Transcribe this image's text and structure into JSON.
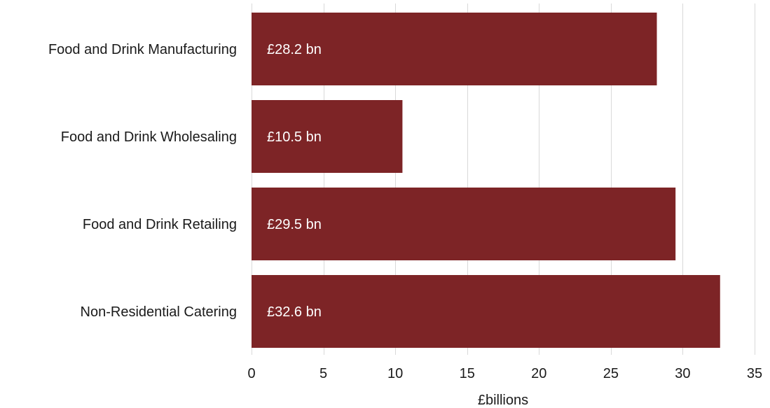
{
  "chart_data": {
    "type": "bar",
    "orientation": "horizontal",
    "categories": [
      "Food and Drink Manufacturing",
      "Food and Drink Wholesaling",
      "Food and Drink Retailing",
      "Non-Residential Catering"
    ],
    "values": [
      28.2,
      10.5,
      29.5,
      32.6
    ],
    "data_labels": [
      "£28.2 bn",
      "£10.5 bn",
      "£29.5 bn",
      "£32.6 bn"
    ],
    "xlabel": "£billions",
    "ylabel": "",
    "xlim": [
      0,
      35
    ],
    "xticks": [
      0,
      5,
      10,
      15,
      20,
      25,
      30,
      35
    ],
    "xtick_labels": [
      "0",
      "5",
      "10",
      "15",
      "20",
      "25",
      "30",
      "35"
    ],
    "grid": "vertical",
    "bar_color": "#7d2426"
  }
}
